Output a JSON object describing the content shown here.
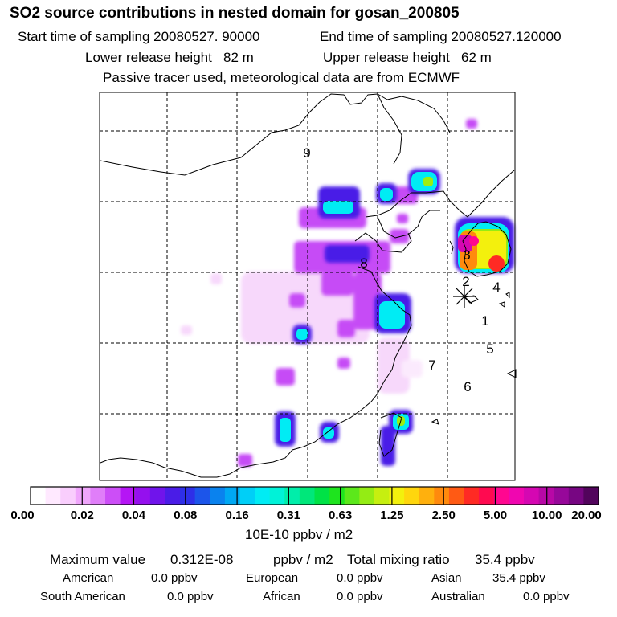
{
  "header": {
    "title": "SO2 source contributions in nested domain for gosan_200805",
    "start_label": "Start time of sampling 20080527. 90000",
    "end_label": "End time of sampling 20080527.120000",
    "lower_release": "Lower release height   82 m",
    "upper_release": "Upper release height   62 m",
    "tracer_note": "Passive tracer used, meteorological data are from ECMWF"
  },
  "map": {
    "region_labels": [
      "1",
      "2",
      "3",
      "4",
      "5",
      "6",
      "7",
      "8",
      "9"
    ],
    "receptor_marker": "asterisk",
    "colors": {
      "frame": "#000000",
      "grid": "#000000",
      "coast": "#000000"
    }
  },
  "colorbar": {
    "tick_labels": [
      "0.00",
      "0.02",
      "0.04",
      "0.08",
      "0.16",
      "0.31",
      "0.63",
      "1.25",
      "2.50",
      "5.00",
      "10.00",
      "20.00"
    ],
    "colors": [
      "#ffffff",
      "#ffe9ff",
      "#f9cefd",
      "#f0a6fc",
      "#e07ef9",
      "#cc4ef7",
      "#b515f5",
      "#9510ee",
      "#7014eb",
      "#4a1ce7",
      "#2e2fe8",
      "#1c55ea",
      "#0a82ee",
      "#00a8f3",
      "#00cff7",
      "#00ecf4",
      "#00f2d8",
      "#00eeaa",
      "#00e77a",
      "#00e246",
      "#1ee41e",
      "#5ce81b",
      "#94ec14",
      "#c6ef10",
      "#f3f00d",
      "#ffd60d",
      "#ffb00d",
      "#ff8a0d",
      "#ff5a14",
      "#ff2a24",
      "#ff0a50",
      "#ff0790",
      "#f006b0",
      "#d507b2",
      "#b808a6",
      "#97089a",
      "#770682",
      "#52045c"
    ],
    "units": "10E-10 ppbv / m2"
  },
  "summary": {
    "max_label": "Maximum value",
    "max_value": "0.312E-08",
    "max_units": "ppbv / m2",
    "total_label": "Total mixing ratio",
    "total_value": "35.4 ppbv",
    "regions": [
      {
        "name": "American",
        "value": "0.0 ppbv"
      },
      {
        "name": "European",
        "value": "0.0 ppbv"
      },
      {
        "name": "Asian",
        "value": "35.4 ppbv"
      },
      {
        "name": "South American",
        "value": "0.0 ppbv"
      },
      {
        "name": "African",
        "value": "0.0 ppbv"
      },
      {
        "name": "Australian",
        "value": "0.0 ppbv"
      }
    ]
  }
}
